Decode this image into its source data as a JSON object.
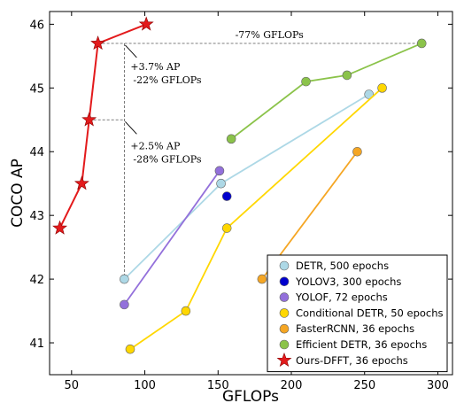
{
  "chart_data": {
    "type": "line",
    "xlabel": "GFLOPs",
    "ylabel": "COCO AP",
    "xlim": [
      35,
      310
    ],
    "ylim": [
      40.5,
      46.2
    ],
    "xticks": [
      "50",
      "100",
      "150",
      "200",
      "250",
      "300"
    ],
    "xtick_values": [
      50,
      100,
      150,
      200,
      250,
      300
    ],
    "yticks": [
      "41",
      "42",
      "43",
      "44",
      "45",
      "46"
    ],
    "ytick_values": [
      41,
      42,
      43,
      44,
      45,
      46
    ],
    "grid": false,
    "legend_position": "bottom-right",
    "series": [
      {
        "name": "DETR, 500 epochs",
        "color": "#add8e6",
        "marker": "circle",
        "points": [
          [
            86,
            42.0
          ],
          [
            152,
            43.5
          ],
          [
            253,
            44.9
          ]
        ]
      },
      {
        "name": "YOLOV3, 300 epochs",
        "color": "#0000cd",
        "marker": "circle",
        "points": [
          [
            156,
            43.3
          ]
        ]
      },
      {
        "name": "YOLOF, 72 epochs",
        "color": "#9370db",
        "marker": "circle",
        "points": [
          [
            86,
            41.6
          ],
          [
            151,
            43.7
          ]
        ]
      },
      {
        "name": "Conditional DETR, 50 epochs",
        "color": "#ffd700",
        "marker": "circle",
        "points": [
          [
            90,
            40.9
          ],
          [
            128,
            41.5
          ],
          [
            156,
            42.8
          ],
          [
            262,
            45.0
          ]
        ]
      },
      {
        "name": "FasterRCNN, 36 epochs",
        "color": "#f5a623",
        "marker": "circle",
        "points": [
          [
            180,
            42.0
          ],
          [
            245,
            44.0
          ]
        ]
      },
      {
        "name": "Efficient DETR, 36 epochs",
        "color": "#8bc34a",
        "marker": "circle",
        "points": [
          [
            159,
            44.2
          ],
          [
            210,
            45.1
          ],
          [
            238,
            45.2
          ],
          [
            289,
            45.7
          ]
        ]
      },
      {
        "name": "Ours-DFFT, 36 epochs",
        "color": "#e31a1c",
        "marker": "star",
        "points": [
          [
            42,
            42.8
          ],
          [
            57,
            43.5
          ],
          [
            62,
            44.5
          ],
          [
            68,
            45.7
          ],
          [
            101,
            46.0
          ]
        ]
      }
    ],
    "annotations": [
      {
        "text": "-77% GFLOPs"
      },
      {
        "text": "+3.7% AP"
      },
      {
        "text": "-22% GFLOPs"
      },
      {
        "text": "+2.5% AP"
      },
      {
        "text": "-28% GFLOPs"
      }
    ]
  }
}
